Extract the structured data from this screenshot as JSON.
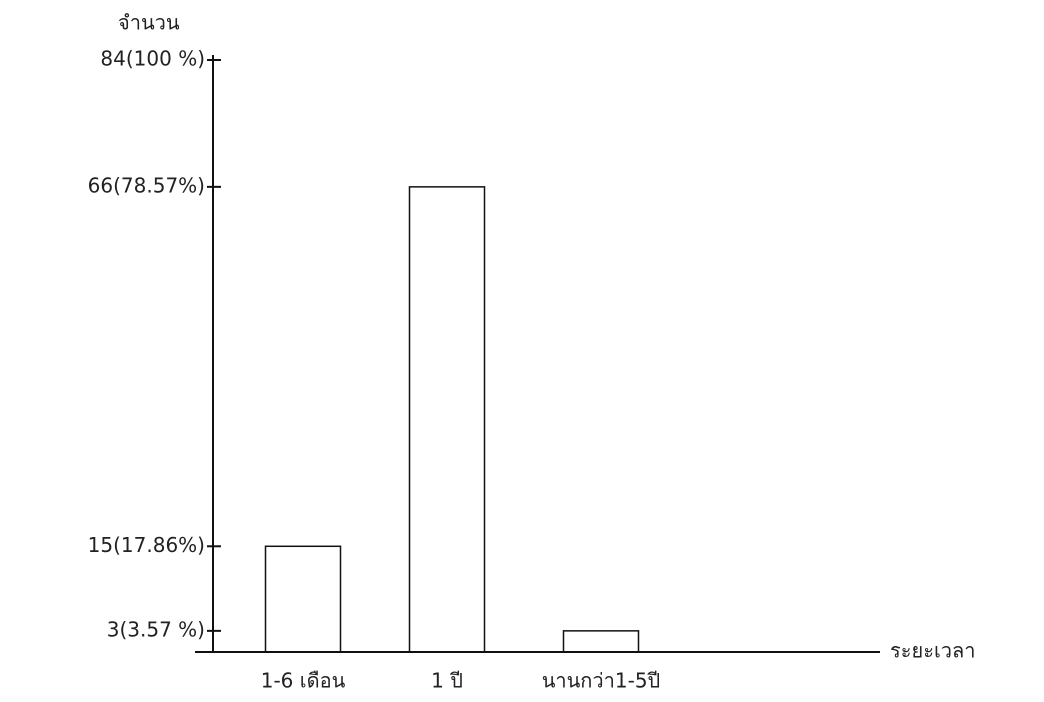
{
  "chart_data": {
    "type": "bar",
    "y_label": "จำนวน",
    "x_label": "ระยะเวลา",
    "categories": [
      "1-6 เดือน",
      "1 ปี",
      "นานกว่า1-5ปี"
    ],
    "values": [
      15,
      66,
      3
    ],
    "color": "#111111",
    "ylim": [
      0,
      84
    ],
    "yticks": [
      {
        "value": 3,
        "label": "3(3.57 %)"
      },
      {
        "value": 15,
        "label": "15(17.86%)"
      },
      {
        "value": 66,
        "label": "66(78.57%)"
      },
      {
        "value": 84,
        "label": "84(100 %)"
      }
    ]
  }
}
